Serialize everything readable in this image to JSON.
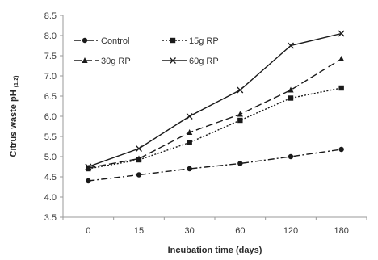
{
  "chart_data": {
    "type": "line",
    "x": [
      "0",
      "15",
      "30",
      "60",
      "120",
      "180"
    ],
    "xlabel": "Incubation time (days)",
    "ylabel": "Citrus waste pH",
    "ylabel_sub": "(1:2)",
    "ylim": [
      3.5,
      8.5
    ],
    "yticks": [
      "3.5",
      "4.0",
      "4.5",
      "5.0",
      "5.5",
      "6.0",
      "6.5",
      "7.0",
      "7.5",
      "8.0",
      "8.5"
    ],
    "grid": false,
    "legend_position": "top-left",
    "series": [
      {
        "name": "Control",
        "values": [
          4.4,
          4.55,
          4.7,
          4.83,
          5.0,
          5.18
        ],
        "marker": "circle",
        "dash": "8 3 2 3",
        "color": "#1a1a1a"
      },
      {
        "name": "15g RP",
        "values": [
          4.7,
          4.92,
          5.35,
          5.9,
          6.45,
          6.7
        ],
        "marker": "square",
        "dash": "2 2",
        "color": "#1a1a1a"
      },
      {
        "name": "30g RP",
        "values": [
          4.72,
          4.95,
          5.6,
          6.05,
          6.65,
          7.42
        ],
        "marker": "triangle",
        "dash": "9 4",
        "color": "#1a1a1a"
      },
      {
        "name": "60g RP",
        "values": [
          4.75,
          5.2,
          6.0,
          6.65,
          7.75,
          8.05
        ],
        "marker": "x",
        "dash": "",
        "color": "#1a1a1a"
      }
    ]
  }
}
